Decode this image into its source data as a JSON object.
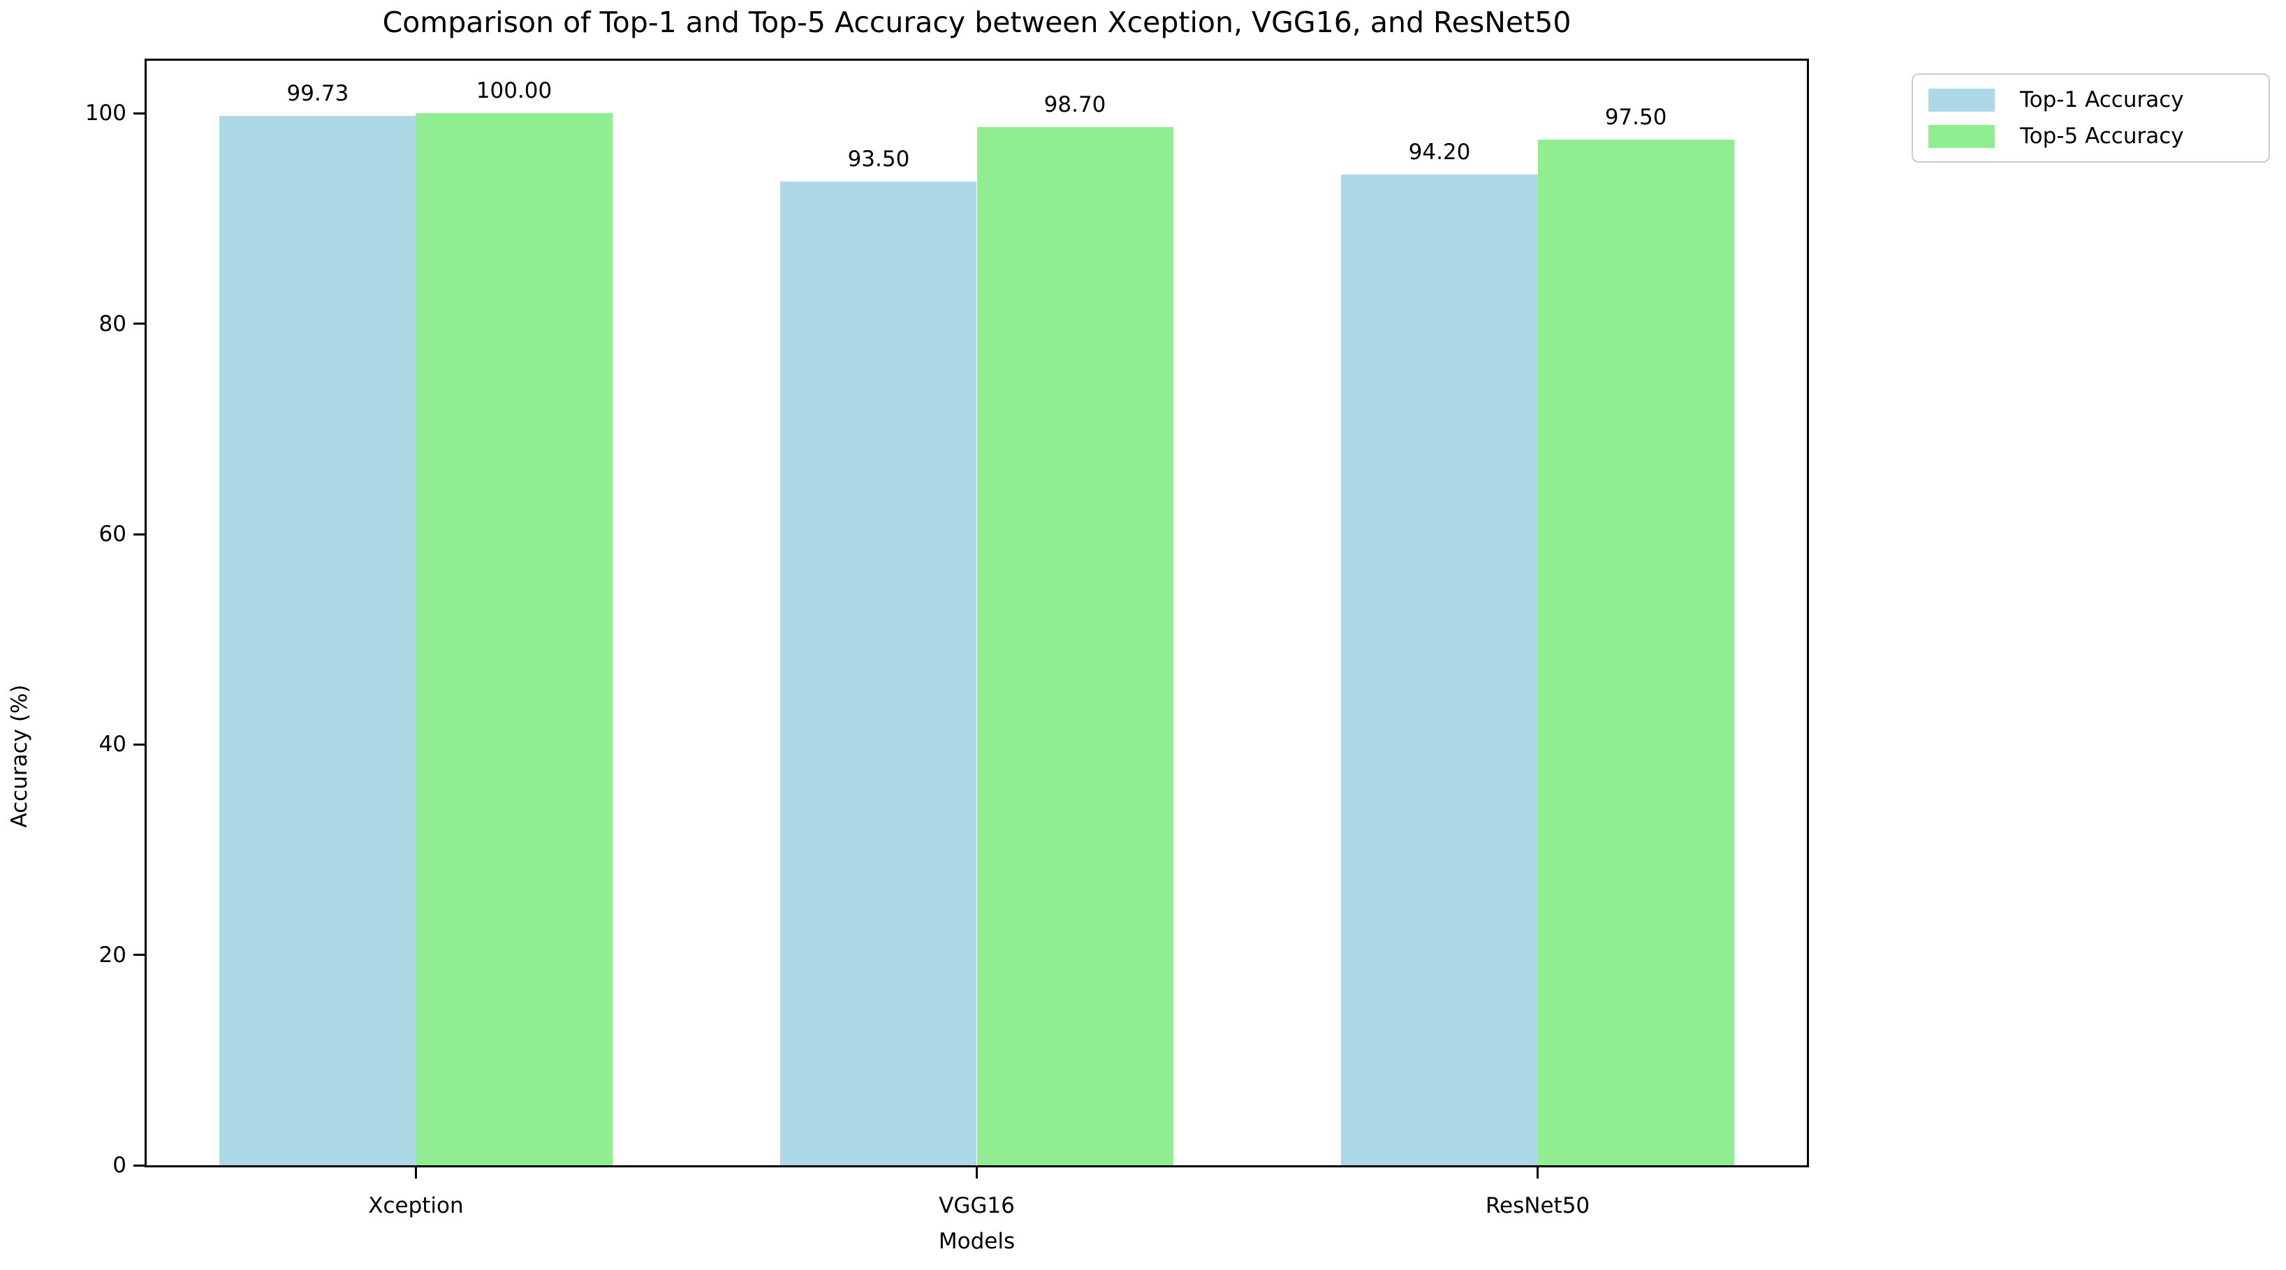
{
  "chart_data": {
    "type": "bar",
    "title": "Comparison of Top-1 and Top-5 Accuracy between Xception, VGG16, and ResNet50",
    "xlabel": "Models",
    "ylabel": "Accuracy (%)",
    "categories": [
      "Xception",
      "VGG16",
      "ResNet50"
    ],
    "series": [
      {
        "name": "Top-1 Accuracy",
        "color": "#ADD8E6",
        "values": [
          99.73,
          93.5,
          94.2
        ],
        "value_labels": [
          "99.73",
          "93.50",
          "94.20"
        ]
      },
      {
        "name": "Top-5 Accuracy",
        "color": "#90EE90",
        "values": [
          100.0,
          98.7,
          97.5
        ],
        "value_labels": [
          "100.00",
          "98.70",
          "97.50"
        ]
      }
    ],
    "ylim": [
      0,
      105
    ],
    "yticks": [
      0,
      20,
      40,
      60,
      80,
      100
    ],
    "xlim": [
      -0.48,
      2.48
    ],
    "bar_width": 0.35,
    "grid": false,
    "legend_position": "upper-right-outside",
    "text_color": "#000000",
    "spine_color": "#000000",
    "background_color": "#ffffff"
  }
}
